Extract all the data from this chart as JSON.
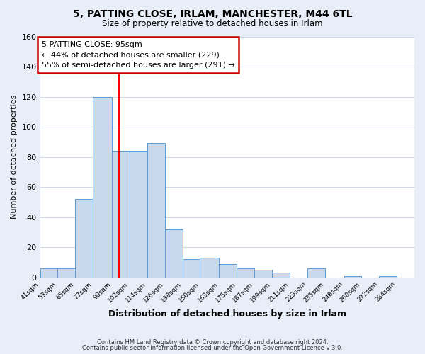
{
  "title": "5, PATTING CLOSE, IRLAM, MANCHESTER, M44 6TL",
  "subtitle": "Size of property relative to detached houses in Irlam",
  "xlabel": "Distribution of detached houses by size in Irlam",
  "ylabel": "Number of detached properties",
  "bar_color": "#c8d9ed",
  "bar_edge_color": "#5b9bd5",
  "bin_labels": [
    "41sqm",
    "53sqm",
    "65sqm",
    "77sqm",
    "90sqm",
    "102sqm",
    "114sqm",
    "126sqm",
    "138sqm",
    "150sqm",
    "163sqm",
    "175sqm",
    "187sqm",
    "199sqm",
    "211sqm",
    "223sqm",
    "235sqm",
    "248sqm",
    "260sqm",
    "272sqm",
    "284sqm"
  ],
  "bin_edges": [
    41,
    53,
    65,
    77,
    90,
    102,
    114,
    126,
    138,
    150,
    163,
    175,
    187,
    199,
    211,
    223,
    235,
    248,
    260,
    272,
    284,
    296
  ],
  "bar_heights": [
    6,
    6,
    52,
    120,
    84,
    84,
    89,
    32,
    12,
    13,
    9,
    6,
    5,
    3,
    0,
    6,
    0,
    1,
    0,
    1,
    0
  ],
  "ylim": [
    0,
    160
  ],
  "yticks": [
    0,
    20,
    40,
    60,
    80,
    100,
    120,
    140,
    160
  ],
  "vline_x": 95,
  "vline_color": "red",
  "annotation_title": "5 PATTING CLOSE: 95sqm",
  "annotation_line1": "← 44% of detached houses are smaller (229)",
  "annotation_line2": "55% of semi-detached houses are larger (291) →",
  "annotation_box_color": "white",
  "annotation_box_edge": "#cc0000",
  "footer1": "Contains HM Land Registry data © Crown copyright and database right 2024.",
  "footer2": "Contains public sector information licensed under the Open Government Licence v 3.0.",
  "bg_color": "#e8eef8",
  "plot_bg_color": "white",
  "grid_color": "#d0d8e8"
}
